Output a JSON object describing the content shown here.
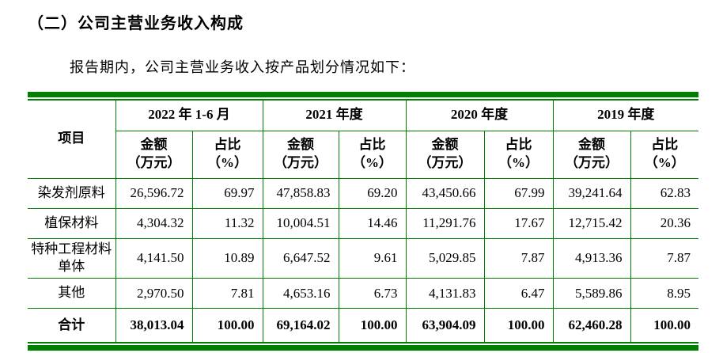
{
  "document": {
    "section_title": "（二）公司主营业务收入构成",
    "intro_text": "报告期内，公司主营业务收入按产品划分情况如下："
  },
  "table": {
    "accent_color": "#008000",
    "header": {
      "item_label": "项目",
      "periods": [
        "2022 年 1-6 月",
        "2021 年度",
        "2020 年度",
        "2019 年度"
      ],
      "amount_label": "金额\n（万元）",
      "ratio_label": "占比\n（%）"
    },
    "rows": [
      {
        "item": "染发剂原料",
        "is_total": false,
        "values": [
          "26,596.72",
          "69.97",
          "47,858.83",
          "69.20",
          "43,450.66",
          "67.99",
          "39,241.64",
          "62.83"
        ]
      },
      {
        "item": "植保材料",
        "is_total": false,
        "values": [
          "4,304.32",
          "11.32",
          "10,004.51",
          "14.46",
          "11,291.76",
          "17.67",
          "12,715.42",
          "20.36"
        ]
      },
      {
        "item": "特种工程材料单体",
        "is_total": false,
        "values": [
          "4,141.50",
          "10.89",
          "6,647.52",
          "9.61",
          "5,029.85",
          "7.87",
          "4,913.36",
          "7.87"
        ]
      },
      {
        "item": "其他",
        "is_total": false,
        "values": [
          "2,970.50",
          "7.81",
          "4,653.16",
          "6.73",
          "4,131.83",
          "6.47",
          "5,589.86",
          "8.95"
        ]
      },
      {
        "item": "合计",
        "is_total": true,
        "values": [
          "38,013.04",
          "100.00",
          "69,164.02",
          "100.00",
          "63,904.09",
          "100.00",
          "62,460.28",
          "100.00"
        ]
      }
    ]
  }
}
